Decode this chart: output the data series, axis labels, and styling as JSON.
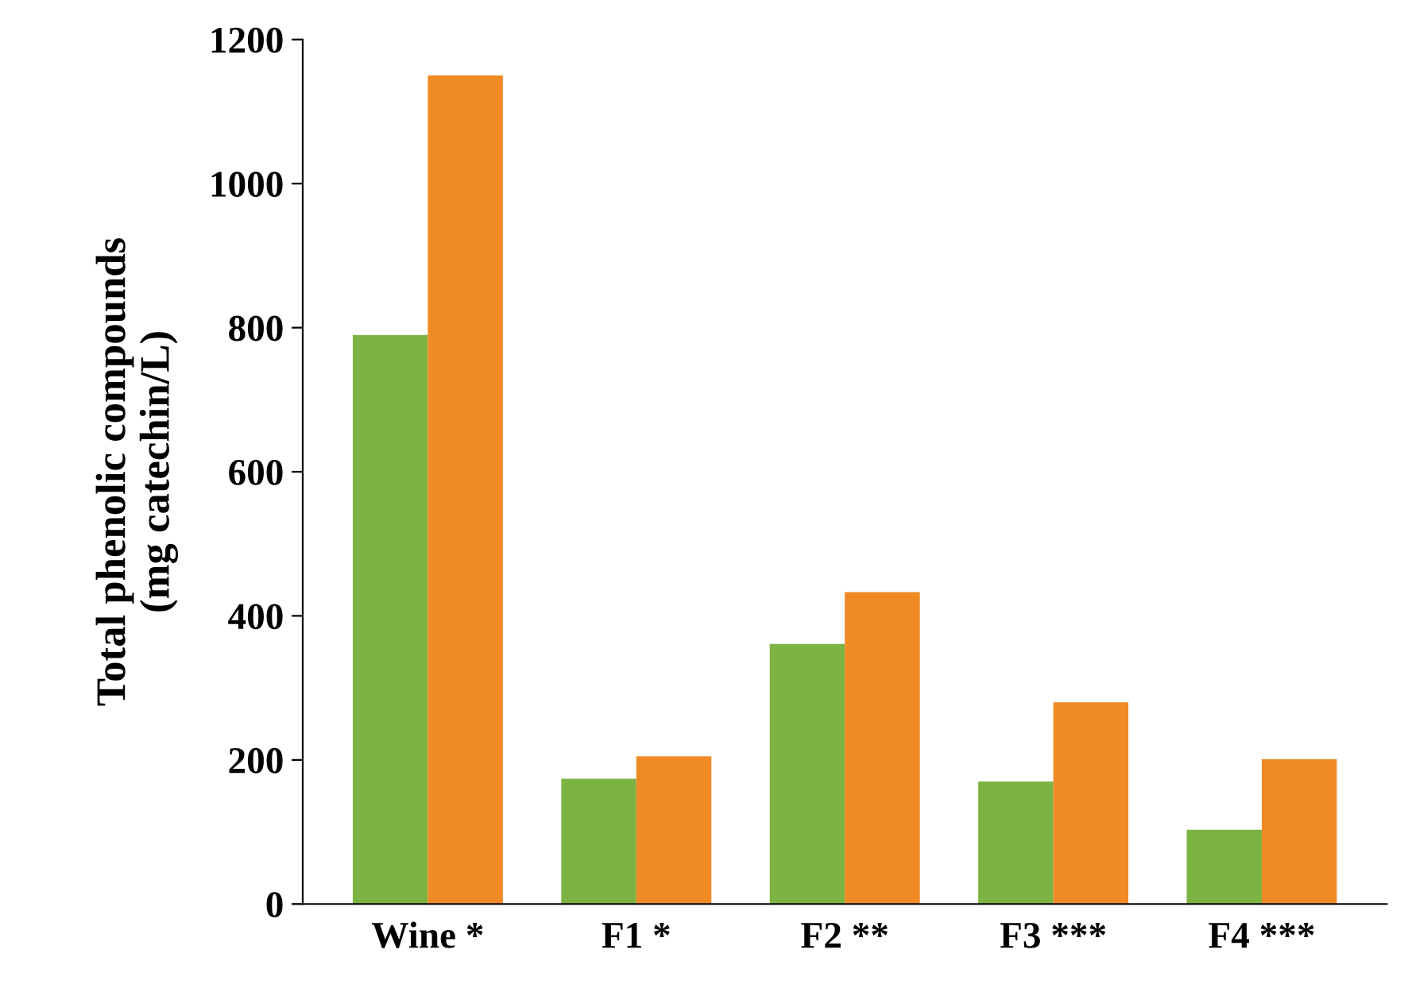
{
  "chart_data": {
    "type": "bar",
    "ylabel": "Total phenolic compounds\n(mg catechin/L)",
    "categories": [
      "Wine *",
      "F1 *",
      "F2 **",
      "F3 ***",
      "F4 ***"
    ],
    "series": [
      {
        "color": "#7cb342",
        "values": [
          790,
          174,
          361,
          170,
          103
        ]
      },
      {
        "color": "#f08a24",
        "values": [
          1150,
          205,
          433,
          280,
          201
        ]
      }
    ],
    "ylim": [
      0,
      1200
    ],
    "yticks": [
      0,
      200,
      400,
      600,
      800,
      1000,
      1200
    ],
    "grid": false
  }
}
